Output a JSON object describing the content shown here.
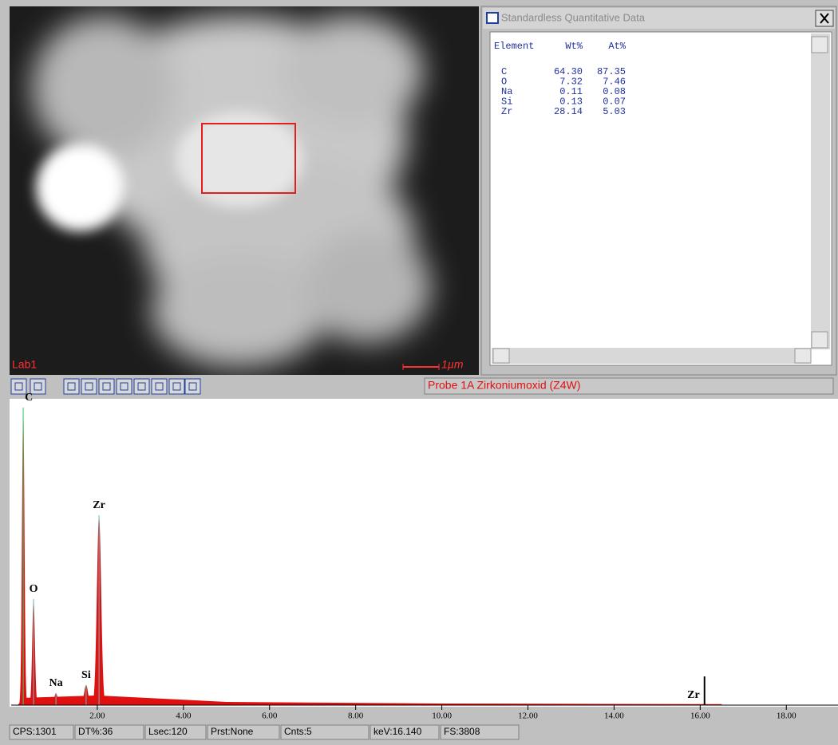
{
  "image_panel": {
    "label": "Lab1",
    "scale_bar": "1µm"
  },
  "quant_window": {
    "title": "Standardless Quantitative Data",
    "columns": [
      "Element",
      "Wt%",
      "At%"
    ],
    "rows": [
      [
        "C",
        "64.30",
        "87.35"
      ],
      [
        "O",
        "7.32",
        "7.46"
      ],
      [
        "Na",
        "0.11",
        "0.08"
      ],
      [
        "Si",
        "0.13",
        "0.07"
      ],
      [
        "Zr",
        "28.14",
        "5.03"
      ]
    ]
  },
  "toolbar": {
    "sample": "Probe 1A Zirkoniumoxid (Z4W)"
  },
  "chart_data": {
    "type": "spectrum",
    "color": "#e01010",
    "xlim": [
      0,
      19.2
    ],
    "ylim": [
      0,
      3808
    ],
    "xticks": [
      {
        "value": 2,
        "label": "2.00"
      },
      {
        "value": 4,
        "label": "4.00"
      },
      {
        "value": 6,
        "label": "6.00"
      },
      {
        "value": 8,
        "label": "8.00"
      },
      {
        "value": 10,
        "label": "10.00"
      },
      {
        "value": 12,
        "label": "12.00"
      },
      {
        "value": 14,
        "label": "14.00"
      },
      {
        "value": 16,
        "label": "16.00"
      },
      {
        "value": 18,
        "label": "18.00"
      }
    ],
    "peaks": [
      {
        "label": "C",
        "x": 0.28,
        "value": 3700
      },
      {
        "label": "O",
        "x": 0.52,
        "value": 1320
      },
      {
        "label": "Na",
        "x": 1.04,
        "value": 150
      },
      {
        "label": "Si",
        "x": 1.74,
        "value": 250
      },
      {
        "label": "Zr",
        "x": 2.04,
        "value": 2360
      }
    ],
    "marker": {
      "label": "Zr",
      "x": 16.1
    }
  },
  "status_bar": [
    "CPS:1301",
    "DT%:36",
    "Lsec:120",
    "Prst:None",
    "Cnts:5",
    "keV:16.140",
    "FS:3808"
  ]
}
